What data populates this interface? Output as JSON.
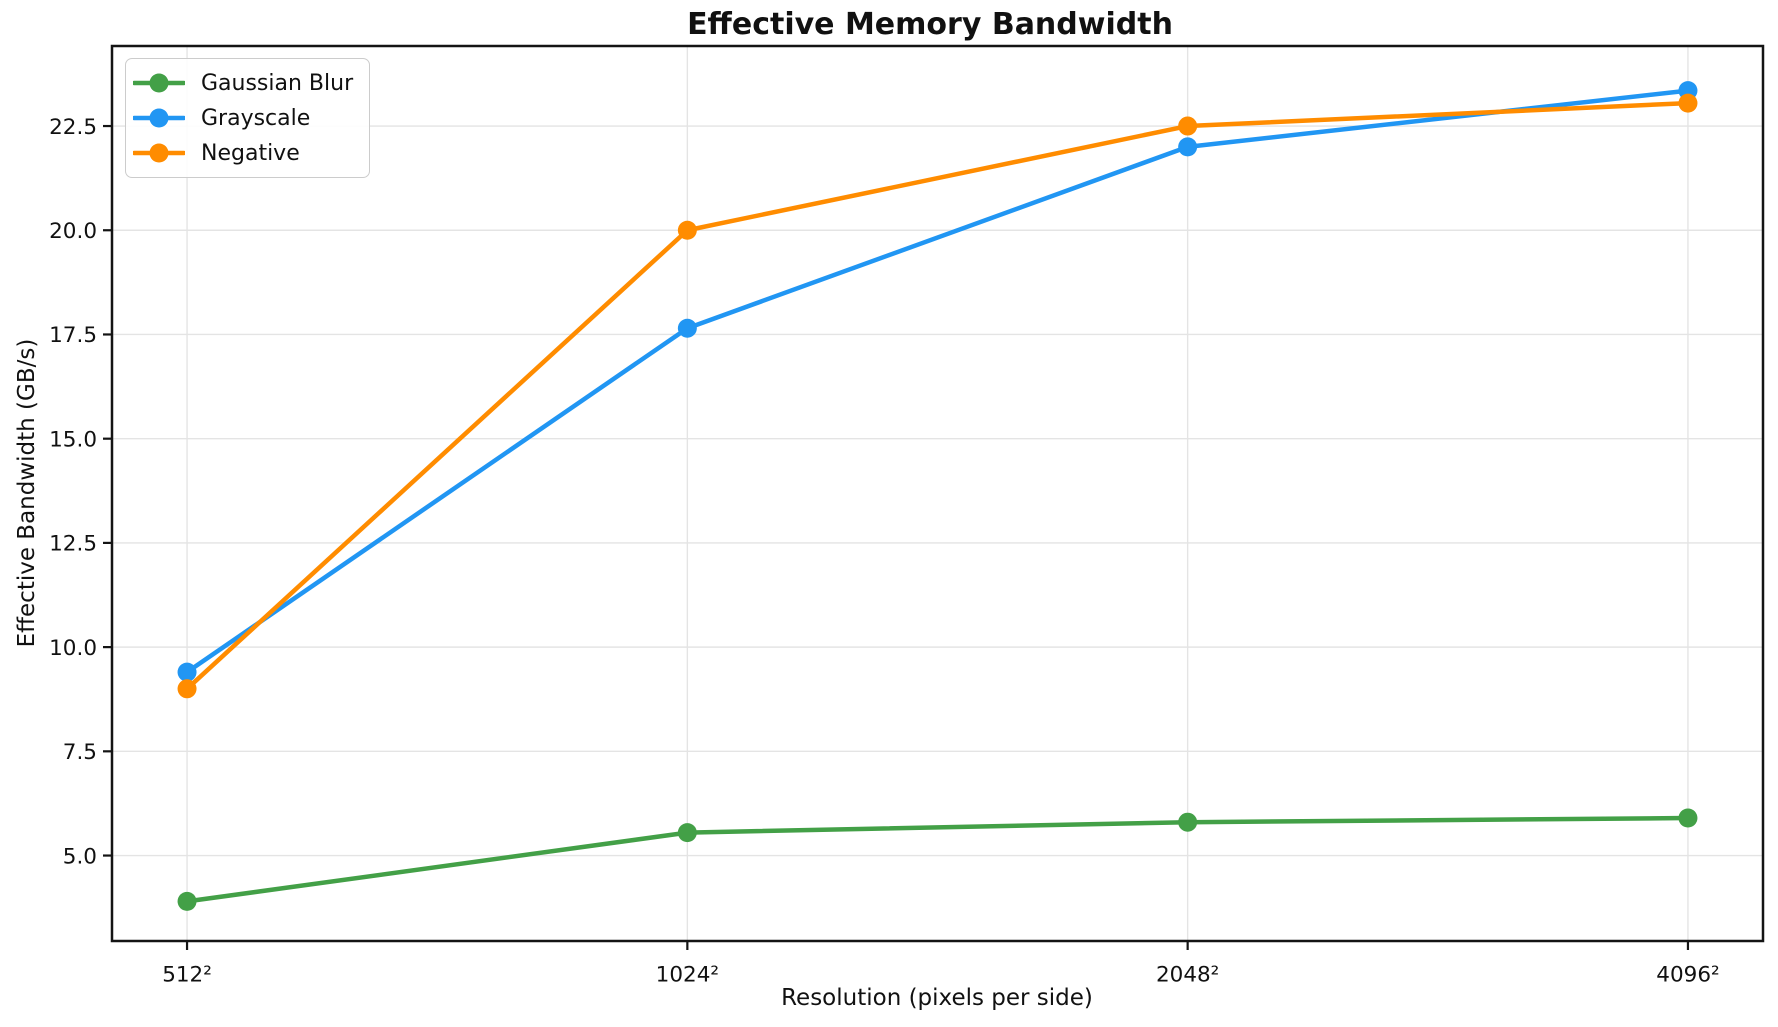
{
  "chart_data": {
    "type": "line",
    "title": "Effective Memory Bandwidth",
    "xlabel": "Resolution (pixels per side)",
    "ylabel": "Effective Bandwidth (GB/s)",
    "categories": [
      "512²",
      "1024²",
      "2048²",
      "4096²"
    ],
    "series": [
      {
        "name": "Gaussian Blur",
        "color": "#43a047",
        "values": [
          3.9,
          5.55,
          5.8,
          5.9
        ]
      },
      {
        "name": "Grayscale",
        "color": "#2196f3",
        "values": [
          9.4,
          17.65,
          22.0,
          23.35
        ]
      },
      {
        "name": "Negative",
        "color": "#ff8c00",
        "values": [
          9.0,
          20.0,
          22.5,
          23.05
        ]
      }
    ],
    "yticks": [
      5.0,
      7.5,
      10.0,
      12.5,
      15.0,
      17.5,
      20.0,
      22.5
    ],
    "ylim": [
      2.95,
      24.42
    ],
    "xlim": [
      -0.15,
      3.15
    ],
    "grid": true,
    "legend_position": "upper left",
    "axis_color": "#141414",
    "grid_color": "#e4e4e4"
  }
}
